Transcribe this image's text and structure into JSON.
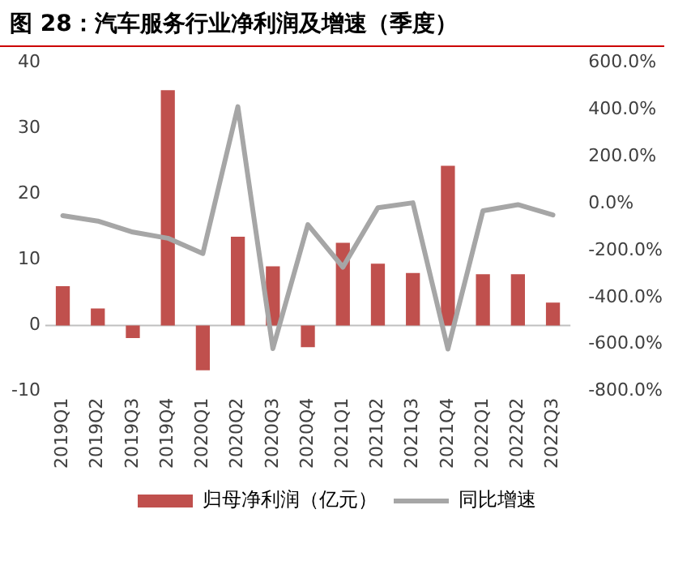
{
  "chart_data": {
    "type": "bar",
    "title": "图 28：汽车服务行业净利润及增速（季度）",
    "categories": [
      "2019Q1",
      "2019Q2",
      "2019Q3",
      "2019Q4",
      "2020Q1",
      "2020Q2",
      "2020Q3",
      "2020Q4",
      "2021Q1",
      "2021Q2",
      "2021Q3",
      "2021Q4",
      "2022Q1",
      "2022Q2",
      "2022Q3"
    ],
    "series": [
      {
        "name": "归母净利润（亿元）",
        "color": "#c0504d",
        "values": [
          6.0,
          2.6,
          -1.9,
          35.8,
          -6.8,
          13.5,
          9.0,
          -3.3,
          12.6,
          9.4,
          8.0,
          24.3,
          7.8,
          7.8,
          3.5
        ]
      },
      {
        "name": "同比增速",
        "type": "line",
        "axis": "y2",
        "color": "#a6a6a6",
        "values": [
          -52,
          -75,
          -122,
          -148,
          -213,
          412,
          -618,
          -90,
          -271,
          -18,
          3,
          -620,
          -31,
          -5,
          -49
        ]
      }
    ],
    "ylim": [
      -10,
      40
    ],
    "yticks": [
      -10,
      0,
      10,
      20,
      30,
      40
    ],
    "y2lim": [
      -800,
      600
    ],
    "y2ticks": [
      {
        "value": -800,
        "label": "-800.0%"
      },
      {
        "value": -600,
        "label": "-600.0%"
      },
      {
        "value": -400,
        "label": "-400.0%"
      },
      {
        "value": -200,
        "label": "-200.0%"
      },
      {
        "value": 0,
        "label": "0.0%"
      },
      {
        "value": 200,
        "label": "200.0%"
      },
      {
        "value": 400,
        "label": "400.0%"
      },
      {
        "value": 600,
        "label": "600.0%"
      }
    ],
    "ref_lines": [
      {
        "axis": "y",
        "value": 0,
        "color": "#bfbfbf"
      }
    ],
    "grid": false,
    "legend": "bottom",
    "marker": "none"
  }
}
